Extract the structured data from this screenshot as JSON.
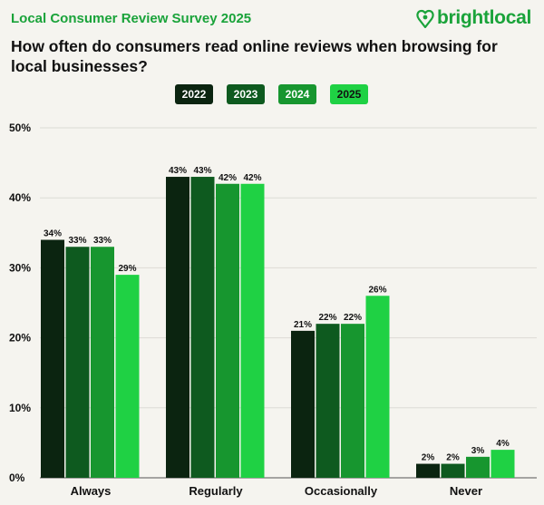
{
  "header": {
    "survey_title": "Local Consumer Review Survey 2025",
    "brand_name": "brightlocal",
    "brand_icon": "heart-pin-icon",
    "question": "How often do consumers read online reviews when browsing for local businesses?"
  },
  "colors": {
    "2022": "#0b2410",
    "2023": "#0e5a1f",
    "2024": "#17962f",
    "2025": "#1fd144",
    "accent": "#1aa33a",
    "background": "#f5f4ef"
  },
  "chart_data": {
    "type": "bar",
    "title": "How often do consumers read online reviews when browsing for local businesses?",
    "categories": [
      "Always",
      "Regularly",
      "Occasionally",
      "Never"
    ],
    "series": [
      {
        "name": "2022",
        "values": [
          34,
          43,
          21,
          2
        ]
      },
      {
        "name": "2023",
        "values": [
          33,
          43,
          22,
          2
        ]
      },
      {
        "name": "2024",
        "values": [
          33,
          42,
          22,
          3
        ]
      },
      {
        "name": "2025",
        "values": [
          29,
          42,
          26,
          4
        ]
      }
    ],
    "ylim": [
      0,
      50
    ],
    "yticks": [
      "0%",
      "10%",
      "20%",
      "30%",
      "40%",
      "50%"
    ],
    "unit": "%",
    "grid": true,
    "legend_position": "top-center"
  }
}
